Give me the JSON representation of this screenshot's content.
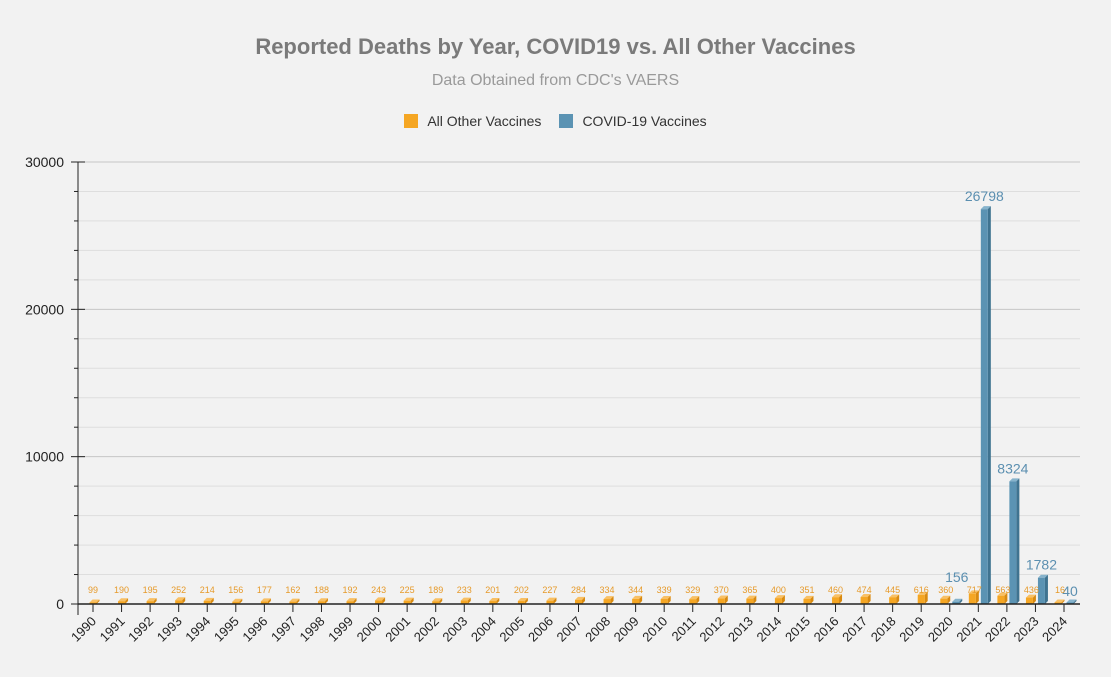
{
  "colors": {
    "other": "#f5a623",
    "other_dark": "#d98a10",
    "covid": "#5b93b3",
    "covid_dark": "#3f7390",
    "other_label": "#e69a2a",
    "covid_label": "#5b8fb0"
  },
  "chart_data": {
    "type": "bar",
    "title": "Reported Deaths by Year, COVID19 vs. All Other Vaccines",
    "subtitle": "Data Obtained from CDC's VAERS",
    "xlabel": "",
    "ylabel": "",
    "ylim": [
      0,
      30000
    ],
    "y_ticks": [
      0,
      10000,
      20000,
      30000
    ],
    "y_tick_labels": [
      "0",
      "10000",
      "20000",
      "30000"
    ],
    "legend_position": "top-center",
    "categories": [
      "1990",
      "1991",
      "1992",
      "1993",
      "1994",
      "1995",
      "1996",
      "1997",
      "1998",
      "1999",
      "2000",
      "2001",
      "2002",
      "2003",
      "2004",
      "2005",
      "2006",
      "2007",
      "2008",
      "2009",
      "2010",
      "2011",
      "2012",
      "2013",
      "2014",
      "2015",
      "2016",
      "2017",
      "2018",
      "2019",
      "2020",
      "2021",
      "2022",
      "2023",
      "2024"
    ],
    "series": [
      {
        "name": "All Other Vaccines",
        "values": [
          99,
          190,
          195,
          252,
          214,
          156,
          177,
          162,
          188,
          192,
          243,
          225,
          189,
          233,
          201,
          202,
          227,
          284,
          334,
          344,
          339,
          329,
          370,
          365,
          400,
          351,
          460,
          474,
          445,
          616,
          360,
          717,
          563,
          436,
          16
        ],
        "labels": [
          "99",
          "190",
          "195",
          "252",
          "214",
          "156",
          "177",
          "162",
          "188",
          "192",
          "243",
          "225",
          "189",
          "233",
          "201",
          "202",
          "227",
          "284",
          "334",
          "344",
          "339",
          "329",
          "370",
          "365",
          "400",
          "351",
          "460",
          "474",
          "445",
          "616",
          "360",
          "717",
          "563",
          "436",
          "16"
        ]
      },
      {
        "name": "COVID-19 Vaccines",
        "values": [
          null,
          null,
          null,
          null,
          null,
          null,
          null,
          null,
          null,
          null,
          null,
          null,
          null,
          null,
          null,
          null,
          null,
          null,
          null,
          null,
          null,
          null,
          null,
          null,
          null,
          null,
          null,
          null,
          null,
          null,
          156,
          26798,
          8324,
          1782,
          40
        ],
        "labels": [
          "",
          "",
          "",
          "",
          "",
          "",
          "",
          "",
          "",
          "",
          "",
          "",
          "",
          "",
          "",
          "",
          "",
          "",
          "",
          "",
          "",
          "",
          "",
          "",
          "",
          "",
          "",
          "",
          "",
          "",
          "156",
          "26798",
          "8324",
          "1782",
          "40"
        ]
      }
    ]
  }
}
